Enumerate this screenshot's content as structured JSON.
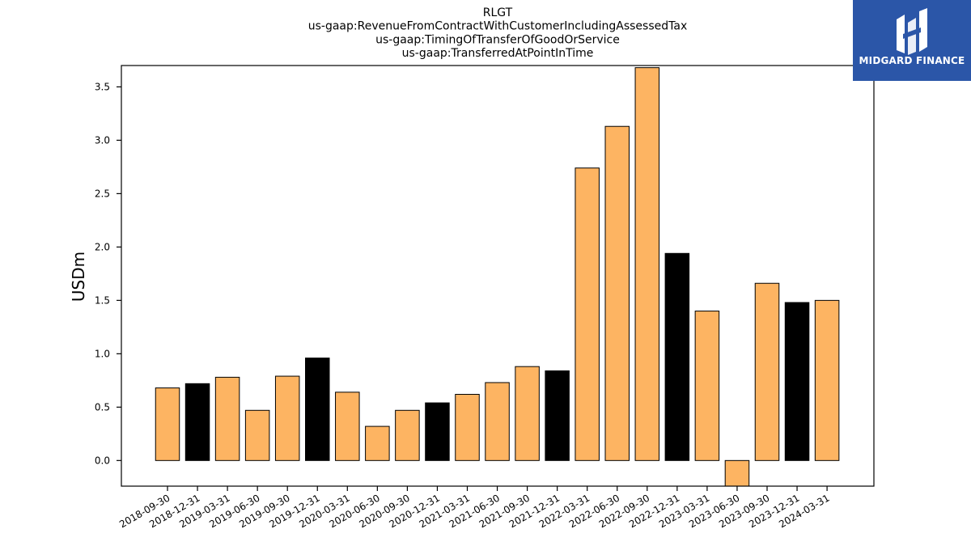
{
  "logo": {
    "text": "MIDGARD FINANCE",
    "background": "#2b56a8"
  },
  "chart_data": {
    "type": "bar",
    "title_lines": [
      "RLGT",
      "us-gaap:RevenueFromContractWithCustomerIncludingAssessedTax",
      "us-gaap:TimingOfTransferOfGoodOrService",
      "us-gaap:TransferredAtPointInTime"
    ],
    "xlabel": "",
    "ylabel": "USDm",
    "ylim": [
      -0.24,
      3.7
    ],
    "yticks": [
      0.0,
      0.5,
      1.0,
      1.5,
      2.0,
      2.5,
      3.0,
      3.5
    ],
    "grid": false,
    "colors": {
      "q1_q3": "#fdb462",
      "q4": "#000000",
      "edge": "#000000"
    },
    "categories": [
      "2018-09-30",
      "2018-12-31",
      "2019-03-31",
      "2019-06-30",
      "2019-09-30",
      "2019-12-31",
      "2020-03-31",
      "2020-06-30",
      "2020-09-30",
      "2020-12-31",
      "2021-03-31",
      "2021-06-30",
      "2021-09-30",
      "2021-12-31",
      "2022-03-31",
      "2022-06-30",
      "2022-09-30",
      "2022-12-31",
      "2023-03-31",
      "2023-06-30",
      "2023-09-30",
      "2023-12-31",
      "2024-03-31"
    ],
    "values": [
      0.68,
      0.72,
      0.78,
      0.47,
      0.79,
      0.96,
      0.64,
      0.32,
      0.47,
      0.54,
      0.62,
      0.73,
      0.88,
      0.84,
      2.74,
      3.13,
      3.68,
      1.94,
      1.4,
      -0.24,
      1.66,
      1.48,
      1.5
    ]
  }
}
